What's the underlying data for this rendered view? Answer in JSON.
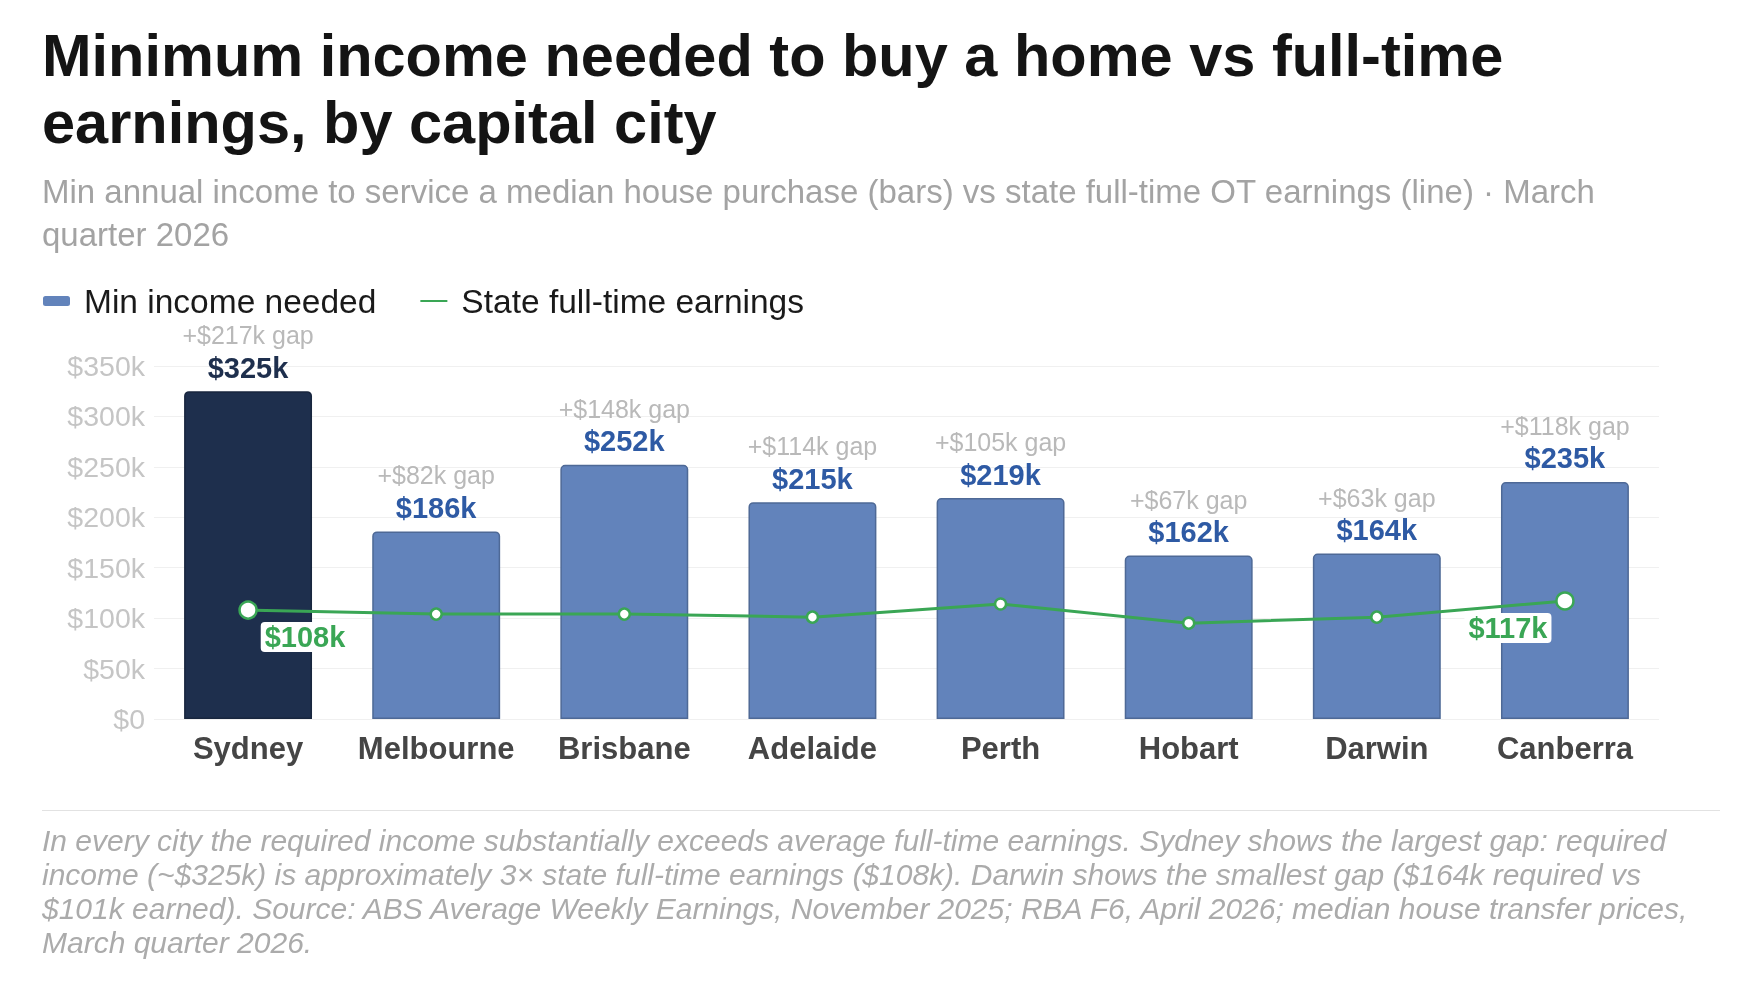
{
  "chart_data": {
    "type": "bar",
    "title": "Minimum income needed to buy a home vs full-time earnings, by capital city",
    "subtitle": "Min annual income to service a median house purchase (bars) vs state full-time OT earnings (line) · March quarter 2026",
    "categories": [
      "Sydney",
      "Melbourne",
      "Brisbane",
      "Adelaide",
      "Perth",
      "Hobart",
      "Darwin",
      "Canberra"
    ],
    "series": [
      {
        "name": "Min income needed",
        "color": "#6283bb",
        "colors": [
          "#1e2f4d",
          "#6283bb",
          "#6283bb",
          "#6283bb",
          "#6283bb",
          "#6283bb",
          "#6283bb",
          "#6283bb"
        ],
        "values": [
          325,
          186,
          252,
          215,
          219,
          162,
          164,
          235
        ],
        "value_labels": [
          "$325k",
          "$186k",
          "$252k",
          "$215k",
          "$219k",
          "$162k",
          "$164k",
          "$235k"
        ]
      },
      {
        "name": "State full-time earnings",
        "type": "line",
        "color": "#3aa655",
        "values": [
          108,
          104,
          104,
          101,
          114,
          95,
          101,
          117
        ],
        "value_labels": [
          "$108k",
          null,
          null,
          null,
          null,
          null,
          null,
          "$117k"
        ],
        "marker": "circle",
        "line_style": "solid"
      }
    ],
    "ylim": [
      0,
      350
    ],
    "yticks": [
      {
        "value": 0,
        "label": "$0"
      },
      {
        "value": 50,
        "label": "$50k"
      },
      {
        "value": 100,
        "label": "$100k"
      },
      {
        "value": 150,
        "label": "$150k"
      },
      {
        "value": 200,
        "label": "$200k"
      },
      {
        "value": 250,
        "label": "$250k"
      },
      {
        "value": 300,
        "label": "$300k"
      },
      {
        "value": 350,
        "label": "$350k"
      }
    ],
    "grid": "y",
    "legend": "top left",
    "annotations": [
      {
        "text": "+$217k gap",
        "x": "Sydney",
        "y": 325
      },
      {
        "text": "+$82k gap",
        "x": "Melbourne",
        "y": 186
      },
      {
        "text": "+$148k gap",
        "x": "Brisbane",
        "y": 252
      },
      {
        "text": "+$114k gap",
        "x": "Adelaide",
        "y": 215
      },
      {
        "text": "+$105k gap",
        "x": "Perth",
        "y": 219
      },
      {
        "text": "+$67k gap",
        "x": "Hobart",
        "y": 162
      },
      {
        "text": "+$63k gap",
        "x": "Darwin",
        "y": 164
      },
      {
        "text": "+$118k gap",
        "x": "Canberra",
        "y": 235
      },
      "In every city the required income substantially exceeds average full-time earnings. Sydney shows the largest gap: required income (~$325k) is approximately 3× state full-time earnings ($108k). Darwin shows the smallest gap ($164k required vs $101k earned). Source: ABS Average Weekly Earnings, November 2025; RBA F6, April 2026; median house transfer prices, March quarter 2026."
    ]
  }
}
